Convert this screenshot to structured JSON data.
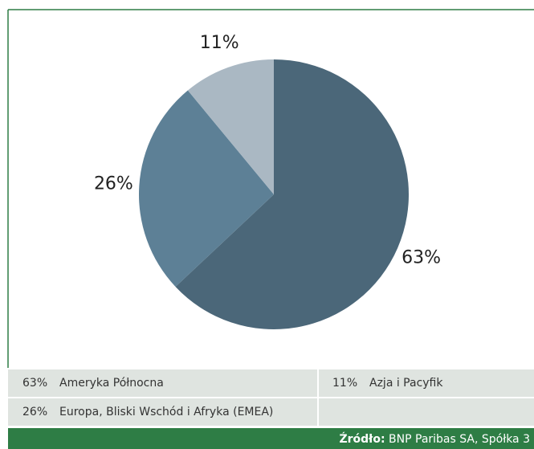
{
  "chart_data": {
    "type": "pie",
    "categories": [
      "Ameryka Północna",
      "Europa, Bliski Wschód i Afryka (EMEA)",
      "Azja i Pacyfik"
    ],
    "values": [
      63,
      26,
      11
    ],
    "value_labels": [
      "63%",
      "26%",
      "11%"
    ],
    "colors": [
      "#4b6779",
      "#5d8096",
      "#aab8c3"
    ]
  },
  "source": {
    "label": "Źródło:",
    "text": "BNP Paribas SA, Spółka 3"
  }
}
